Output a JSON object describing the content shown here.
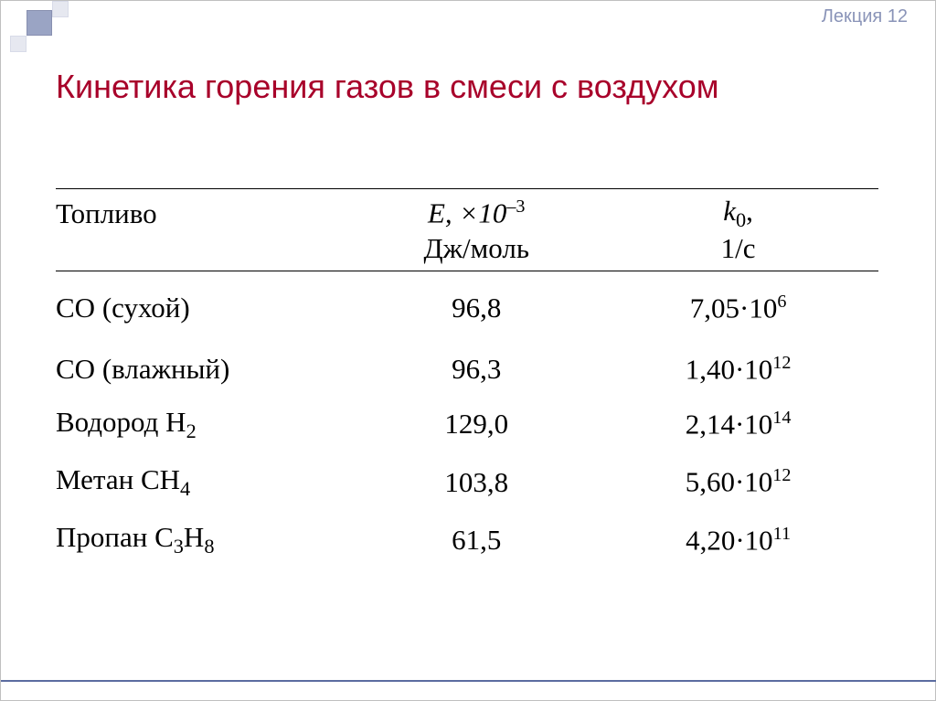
{
  "label": "Лекция 12",
  "title": "Кинетика горения газов в смеси с воздухом",
  "colors": {
    "title": "#a8002a",
    "label": "#8a94b8",
    "text": "#000000",
    "rule": "#000000",
    "footer_rule": "#5b6ca0",
    "background": "#ffffff",
    "deco_dark": "#9aa4c4",
    "deco_light": "#e6e8f0"
  },
  "table": {
    "type": "table",
    "header": {
      "fuel": "Топливо",
      "E_top": "E, ×10",
      "E_exp": "–3",
      "E_unit": "Дж/моль",
      "k_top": "k",
      "k_sub": "0",
      "k_comma": ",",
      "k_unit": "1/с"
    },
    "rows": [
      {
        "fuel": "СО (сухой)",
        "E": "96,8",
        "k_m": "7,05·10",
        "k_e": "6"
      },
      {
        "fuel": "СО (влажный)",
        "E": "96,3",
        "k_m": "1,40·10",
        "k_e": "12"
      },
      {
        "fuel_pre": "Водород H",
        "fuel_sub": "2",
        "E": "129,0",
        "k_m": "2,14·10",
        "k_e": "14"
      },
      {
        "fuel_pre": "Метан СH",
        "fuel_sub": "4",
        "E": "103,8",
        "k_m": "5,60·10",
        "k_e": "12"
      },
      {
        "fuel_pre": "Пропан С",
        "fuel_mid": "3",
        "fuel_post": "H",
        "fuel_sub": "8",
        "E": "61,5",
        "k_m": "4,20·10",
        "k_e": "11"
      }
    ]
  },
  "fonts": {
    "title_family": "Arial",
    "title_size_pt": 27,
    "body_family": "Times New Roman",
    "body_size_pt": 23,
    "label_size_pt": 15
  }
}
